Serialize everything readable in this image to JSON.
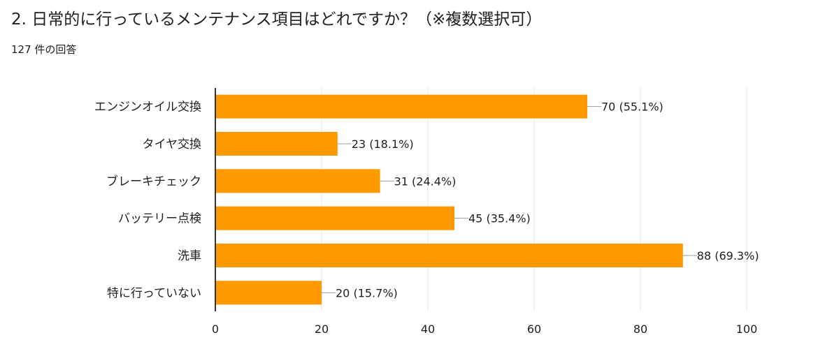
{
  "question": {
    "title": "2. 日常的に行っているメンテナンス項目はどれですか？（※複数選択可）",
    "response_count": "127 件の回答"
  },
  "colors": {
    "bar": "#FF9900",
    "grid": "#E6E6E6",
    "axis": "#333333",
    "leader": "#9E9E9E",
    "text": "#202124"
  },
  "chart_data": {
    "type": "bar",
    "orientation": "horizontal",
    "categories": [
      "エンジンオイル交換",
      "タイヤ交換",
      "ブレーキチェック",
      "バッテリー点検",
      "洗車",
      "特に行っていない"
    ],
    "values": [
      70,
      23,
      31,
      45,
      88,
      20
    ],
    "value_labels": [
      "70 (55.1%)",
      "23 (18.1%)",
      "31 (24.4%)",
      "45 (35.4%)",
      "88 (69.3%)",
      "20 (15.7%)"
    ],
    "xlim": [
      0,
      100
    ],
    "x_ticks": [
      0,
      20,
      40,
      60,
      80,
      100
    ],
    "grid": true,
    "legend": "none"
  }
}
